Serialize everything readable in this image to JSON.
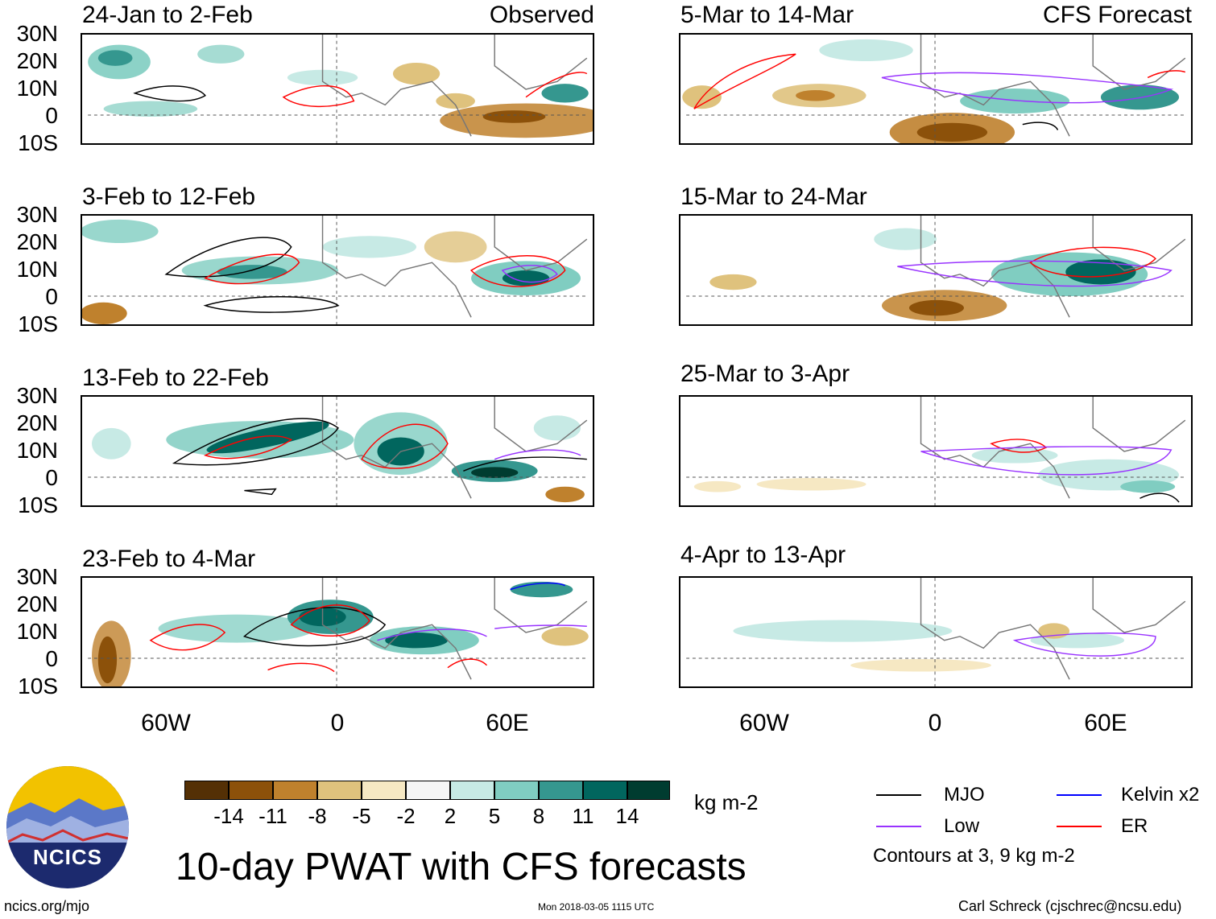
{
  "figure": {
    "title": "10-day PWAT with CFS forecasts",
    "left_column_tag": "Observed",
    "right_column_tag": "CFS Forecast",
    "lat_labels": [
      "30N",
      "20N",
      "10N",
      "0",
      "10S"
    ],
    "lon_labels": [
      "60W",
      "0",
      "60E"
    ]
  },
  "panels": {
    "p1": "24-Jan to 2-Feb",
    "p2": "3-Feb to 12-Feb",
    "p3": "13-Feb to 22-Feb",
    "p4": "23-Feb to 4-Mar",
    "p5": "5-Mar to 14-Mar",
    "p6": "15-Mar to 24-Mar",
    "p7": "25-Mar to 3-Apr",
    "p8": "4-Apr to 13-Apr"
  },
  "colorbar": {
    "units": "kg m-2",
    "labels": [
      "-14",
      "-11",
      "-8",
      "-5",
      "-2",
      "2",
      "5",
      "8",
      "11",
      "14"
    ],
    "colors": [
      "#543005",
      "#8c510a",
      "#bf812d",
      "#dfc27d",
      "#f6e8c3",
      "#f5f5f5",
      "#c7eae5",
      "#80cdc1",
      "#35978f",
      "#01665e",
      "#003c30"
    ]
  },
  "legend": {
    "mjo": "MJO",
    "low": "Low",
    "kelvin": "Kelvin x2",
    "er": "ER",
    "contours_note": "Contours at 3, 9 kg m-2",
    "colors": {
      "mjo": "#000000",
      "low": "#9933ff",
      "kelvin": "#0000ff",
      "er": "#ff0000"
    }
  },
  "footer": {
    "site": "ncics.org/mjo",
    "timestamp": "Mon 2018-03-05 1115 UTC",
    "author": "Carl Schreck (cjschrec@ncsu.edu)",
    "logo_text": "NCICS"
  }
}
